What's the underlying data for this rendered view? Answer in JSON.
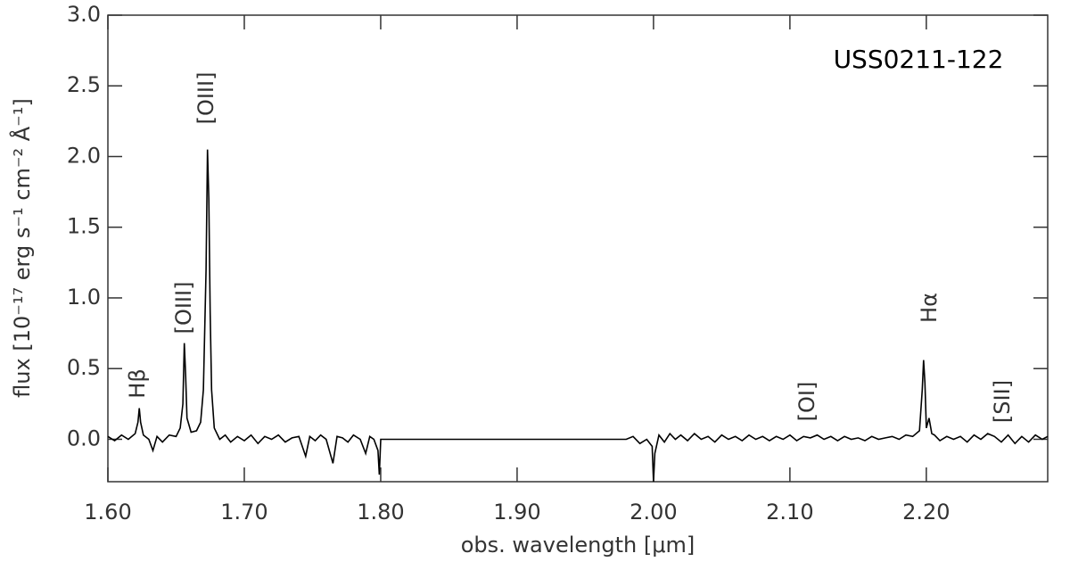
{
  "chart_data": {
    "type": "line",
    "annotation_title": "USS0211-122",
    "xlabel": "obs. wavelength [μm]",
    "ylabel": "flux [10⁻¹⁷ erg s⁻¹ cm⁻² Å⁻¹]",
    "annotations": [
      "Hβ",
      "[OIII]",
      "[OIII]",
      "[OI]",
      "Hα",
      "[SII]"
    ],
    "color": "#000000",
    "grid": false,
    "xlim": [
      1.6,
      2.289
    ],
    "ylim": [
      -0.3,
      3.0
    ],
    "xticks": [
      {
        "value": 1.6,
        "label": "1.60"
      },
      {
        "value": 1.7,
        "label": "1.70"
      },
      {
        "value": 1.8,
        "label": "1.80"
      },
      {
        "value": 1.9,
        "label": "1.90"
      },
      {
        "value": 2.0,
        "label": "2.00"
      },
      {
        "value": 2.1,
        "label": "2.10"
      },
      {
        "value": 2.2,
        "label": "2.20"
      }
    ],
    "yticks": [
      {
        "value": 0,
        "label": "0.0"
      },
      {
        "value": 0.5,
        "label": "0.5"
      },
      {
        "value": 1,
        "label": "1.0"
      },
      {
        "value": 1.5,
        "label": "1.5"
      },
      {
        "value": 2,
        "label": "2.0"
      },
      {
        "value": 2.5,
        "label": "2.5"
      },
      {
        "value": 3,
        "label": "3.0"
      }
    ],
    "x": [
      1.6,
      1.605,
      1.61,
      1.615,
      1.62,
      1.622,
      1.623,
      1.624,
      1.626,
      1.63,
      1.633,
      1.636,
      1.64,
      1.645,
      1.65,
      1.653,
      1.655,
      1.656,
      1.657,
      1.658,
      1.661,
      1.665,
      1.668,
      1.67,
      1.672,
      1.673,
      1.674,
      1.675,
      1.676,
      1.678,
      1.682,
      1.686,
      1.69,
      1.695,
      1.7,
      1.705,
      1.71,
      1.715,
      1.72,
      1.725,
      1.73,
      1.735,
      1.74,
      1.745,
      1.748,
      1.752,
      1.756,
      1.76,
      1.765,
      1.768,
      1.772,
      1.776,
      1.78,
      1.785,
      1.789,
      1.792,
      1.795,
      1.798,
      1.799,
      1.8,
      1.98,
      1.985,
      1.99,
      1.995,
      1.999,
      2.0,
      2.001,
      2.004,
      2.008,
      2.012,
      2.016,
      2.02,
      2.025,
      2.03,
      2.035,
      2.04,
      2.045,
      2.05,
      2.055,
      2.06,
      2.065,
      2.07,
      2.075,
      2.08,
      2.085,
      2.09,
      2.095,
      2.1,
      2.105,
      2.11,
      2.115,
      2.12,
      2.125,
      2.13,
      2.135,
      2.14,
      2.145,
      2.15,
      2.155,
      2.16,
      2.165,
      2.17,
      2.175,
      2.18,
      2.185,
      2.19,
      2.195,
      2.197,
      2.198,
      2.199,
      2.2,
      2.202,
      2.204,
      2.206,
      2.21,
      2.215,
      2.22,
      2.225,
      2.23,
      2.235,
      2.24,
      2.245,
      2.25,
      2.255,
      2.26,
      2.265,
      2.27,
      2.275,
      2.28,
      2.285,
      2.289
    ],
    "values": [
      0.02,
      -0.01,
      0.03,
      0,
      0.04,
      0.12,
      0.22,
      0.12,
      0.03,
      0,
      -0.08,
      0.02,
      -0.02,
      0.03,
      0.02,
      0.08,
      0.25,
      0.68,
      0.45,
      0.15,
      0.05,
      0.06,
      0.12,
      0.35,
      1.2,
      2.05,
      1.7,
      0.9,
      0.35,
      0.08,
      0,
      0.03,
      -0.02,
      0.02,
      -0.01,
      0.03,
      -0.03,
      0.02,
      0,
      0.03,
      -0.02,
      0.01,
      0.02,
      -0.12,
      0.02,
      -0.01,
      0.03,
      0,
      -0.17,
      0.02,
      0.01,
      -0.02,
      0.03,
      0,
      -0.1,
      0.02,
      0,
      -0.08,
      -0.25,
      0,
      0,
      0.02,
      -0.03,
      0,
      -0.05,
      -0.3,
      -0.1,
      0.03,
      -0.02,
      0.04,
      0,
      0.03,
      -0.01,
      0.04,
      0,
      0.02,
      -0.02,
      0.03,
      0,
      0.02,
      -0.01,
      0.03,
      0,
      0.02,
      -0.01,
      0.02,
      0,
      0.03,
      -0.01,
      0.02,
      0.01,
      0.03,
      0,
      0.02,
      -0.01,
      0.02,
      0,
      0.01,
      -0.01,
      0.02,
      0,
      0.01,
      0.02,
      0,
      0.03,
      0.02,
      0.06,
      0.35,
      0.56,
      0.4,
      0.08,
      0.15,
      0.04,
      0.03,
      -0.01,
      0.02,
      0,
      0.02,
      -0.02,
      0.03,
      0,
      0.04,
      0.02,
      -0.02,
      0.03,
      -0.03,
      0.02,
      -0.02,
      0.03,
      0,
      0.02
    ]
  }
}
